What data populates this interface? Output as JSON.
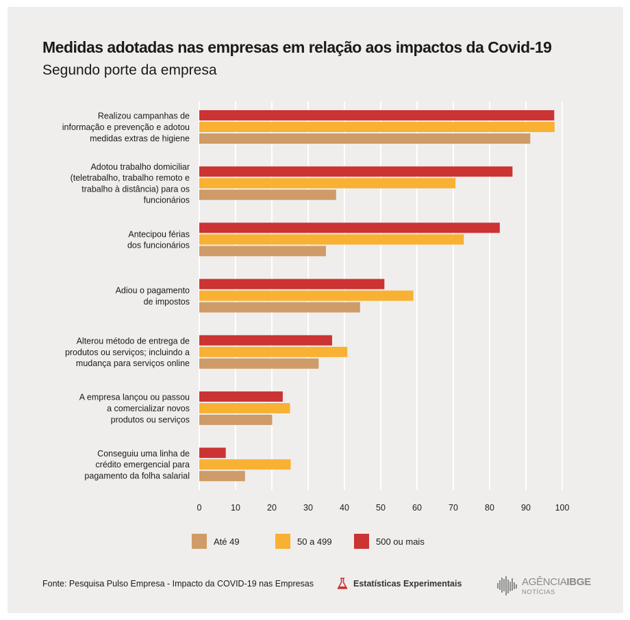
{
  "header": {
    "title": "Medidas adotadas nas empresas em relação aos impactos da Covid-19",
    "subtitle": "Segundo porte da empresa"
  },
  "chart_data": {
    "type": "bar",
    "orientation": "horizontal",
    "title": "Medidas adotadas nas empresas em relação aos impactos da Covid-19",
    "subtitle": "Segundo porte da empresa",
    "categories": [
      [
        "Realizou campanhas de",
        "informação e prevenção e adotou",
        "medidas extras de higiene"
      ],
      [
        "Adotou trabalho domiciliar",
        "(teletrabalho, trabalho remoto e",
        "trabalho à distância) para os",
        "funcionários"
      ],
      [
        "Antecipou férias",
        "dos funcionários"
      ],
      [
        "Adiou o pagamento",
        "de impostos"
      ],
      [
        "Alterou método de entrega de",
        "produtos ou serviços; incluindo a",
        "mudança para serviços online"
      ],
      [
        "A empresa lançou ou passou",
        "a comercializar novos",
        "produtos ou serviços"
      ],
      [
        "Conseguiu uma linha de",
        "crédito emergencial para",
        "pagamento da folha salarial"
      ]
    ],
    "series": [
      {
        "name": "500 ou mais",
        "color": "#cc3333",
        "values": [
          97.8,
          86.3,
          82.8,
          51.0,
          36.6,
          23.0,
          7.3
        ]
      },
      {
        "name": "50 a 499",
        "color": "#f8b133",
        "values": [
          97.9,
          70.6,
          72.9,
          59.0,
          40.8,
          25.0,
          25.2
        ]
      },
      {
        "name": "Até 49",
        "color": "#cf9b68",
        "values": [
          91.2,
          37.7,
          34.9,
          44.3,
          32.9,
          20.1,
          12.6
        ]
      }
    ],
    "xlim": [
      0,
      100
    ],
    "xticks": [
      "0",
      "10",
      "20",
      "30",
      "40",
      "50",
      "60",
      "70",
      "80",
      "90",
      "100"
    ],
    "grid": true,
    "legend": [
      {
        "label": "Até 49",
        "color": "#cf9b68"
      },
      {
        "label": "50 a 499",
        "color": "#f8b133"
      },
      {
        "label": "500 ou mais",
        "color": "#cc3333"
      }
    ],
    "legend_position": "bottom"
  },
  "footer": {
    "source": "Fonte: Pesquisa Pulso Empresa - Impacto da COVID-19 nas Empresas",
    "experimental_label": "Estatísticas Experimentais",
    "experimental_icon": "flask-icon",
    "logo_text_light": "AGÊNCIA",
    "logo_text_bold": "IBGE",
    "logo_sub": "NOTÍCIAS"
  }
}
